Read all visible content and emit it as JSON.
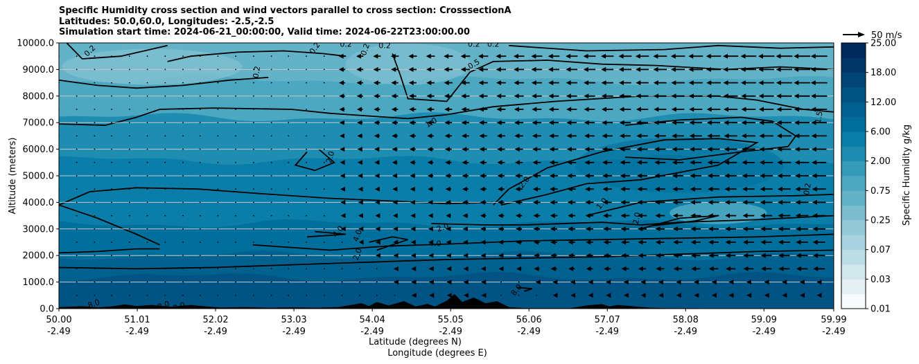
{
  "title_lines": [
    "Specific Humidity cross section and wind vectors parallel to cross section: CrosssectionA",
    "Latitudes: 50.0,60.0, Longitudes: -2.5,-2.5",
    "Simulation start time: 2024-06-21_00:00:00, Valid time: 2024-06-22T23:00:00.00"
  ],
  "chart_data": {
    "type": "heatmap",
    "ylabel": "Altitude (meters)",
    "xlabel_lines": [
      "Latitude (degrees N)",
      "Longitude (degrees E)"
    ],
    "ylim": [
      0,
      10000
    ],
    "xlim": [
      50.0,
      59.99
    ],
    "grid": "horizontal",
    "y_ticks": [
      "0.0",
      "1000.0",
      "2000.0",
      "3000.0",
      "4000.0",
      "5000.0",
      "6000.0",
      "7000.0",
      "8000.0",
      "9000.0",
      "10000.0"
    ],
    "x_ticks": [
      {
        "lat": "50.00",
        "lon": "-2.49"
      },
      {
        "lat": "51.01",
        "lon": "-2.49"
      },
      {
        "lat": "52.02",
        "lon": "-2.49"
      },
      {
        "lat": "53.03",
        "lon": "-2.49"
      },
      {
        "lat": "54.04",
        "lon": "-2.49"
      },
      {
        "lat": "55.05",
        "lon": "-2.49"
      },
      {
        "lat": "56.06",
        "lon": "-2.49"
      },
      {
        "lat": "57.07",
        "lon": "-2.49"
      },
      {
        "lat": "58.08",
        "lon": "-2.49"
      },
      {
        "lat": "59.09",
        "lon": "-2.49"
      },
      {
        "lat": "59.99",
        "lon": "-2.49"
      }
    ],
    "colorbar": {
      "label": "Specific Humidity g/kg",
      "ticks": [
        "0.01",
        "0.03",
        "0.07",
        "0.25",
        "0.75",
        "2.00",
        "6.00",
        "12.00",
        "18.00",
        "25.00"
      ],
      "levels": [
        "0.01",
        "0.02",
        "0.03",
        "0.05",
        "0.07",
        "0.1",
        "0.25",
        "0.5",
        "0.75",
        "1.0",
        "2.0",
        "4.0",
        "6.0",
        "9.0",
        "12.0",
        "15.0",
        "18.0",
        "22.0",
        "25.0"
      ],
      "colors": [
        "#f7fbfc",
        "#e4f0f3",
        "#d0e7ec",
        "#bcdde5",
        "#a8d3de",
        "#93c9d7",
        "#7cbecf",
        "#63b2c7",
        "#4ca7c0",
        "#369ab9",
        "#1f8cb1",
        "#0a7ea8",
        "#006f9c",
        "#00618f",
        "#005382",
        "#004575",
        "#003768",
        "#00295b"
      ]
    },
    "bands": [
      {
        "range": "0.25-0.5",
        "color": "#63b2c7",
        "y_top": 10000,
        "y_bottom": 8600
      },
      {
        "range": "0.5-1.0",
        "color": "#4ca7c0",
        "y_top": 8600,
        "y_bottom": 7200
      },
      {
        "range": "1.0-2.0",
        "color": "#1f8cb1",
        "y_top": 7200,
        "y_bottom": 5600
      },
      {
        "range": "2.0-4.0",
        "color": "#0a7ea8",
        "y_top": 5600,
        "y_bottom": 3200
      },
      {
        "range": "4.0-6.0",
        "color": "#006f9c",
        "y_top": 3200,
        "y_bottom": 2000
      },
      {
        "range": "6.0-9.0",
        "color": "#00618f",
        "y_top": 2000,
        "y_bottom": 1200
      },
      {
        "range": "9.0-12.0",
        "color": "#005382",
        "y_top": 1200,
        "y_bottom": 0
      }
    ],
    "contour_labels": [
      {
        "text": "0.2",
        "x": 50.4,
        "y": 9700,
        "rot": -45
      },
      {
        "text": "0.2",
        "x": 52.55,
        "y": 8900,
        "rot": -80
      },
      {
        "text": "0.2",
        "x": 53.3,
        "y": 9800,
        "rot": -55
      },
      {
        "text": "0.2",
        "x": 53.7,
        "y": 9950,
        "rot": 0
      },
      {
        "text": "0.2",
        "x": 53.95,
        "y": 9750,
        "rot": -70
      },
      {
        "text": "0.2",
        "x": 54.2,
        "y": 9900,
        "rot": 0
      },
      {
        "text": "0.2",
        "x": 55.35,
        "y": 9950,
        "rot": 0
      },
      {
        "text": "0.2",
        "x": 55.6,
        "y": 9950,
        "rot": 0
      },
      {
        "text": "0.5",
        "x": 55.35,
        "y": 9200,
        "rot": -30
      },
      {
        "text": "1.0",
        "x": 54.8,
        "y": 7000,
        "rot": -30
      },
      {
        "text": "2.0",
        "x": 53.5,
        "y": 5700,
        "rot": -75
      },
      {
        "text": "2.0",
        "x": 56.0,
        "y": 4750,
        "rot": -50
      },
      {
        "text": "1.0",
        "x": 57.0,
        "y": 3950,
        "rot": -50
      },
      {
        "text": "2.0",
        "x": 57.45,
        "y": 3400,
        "rot": -80
      },
      {
        "text": "0.2",
        "x": 59.65,
        "y": 4500,
        "rot": -80
      },
      {
        "text": "1.5",
        "x": 59.8,
        "y": 7200,
        "rot": -80
      },
      {
        "text": "4.0",
        "x": 53.6,
        "y": 2900,
        "rot": -50
      },
      {
        "text": "4.0",
        "x": 53.85,
        "y": 2750,
        "rot": -70
      },
      {
        "text": "2.0",
        "x": 53.85,
        "y": 2050,
        "rot": -70
      },
      {
        "text": "2.0",
        "x": 54.95,
        "y": 3050,
        "rot": -20
      },
      {
        "text": "4.0",
        "x": 54.85,
        "y": 2450,
        "rot": 0
      },
      {
        "text": "8.0",
        "x": 50.45,
        "y": 180,
        "rot": -20
      },
      {
        "text": "8.0",
        "x": 51.35,
        "y": 120,
        "rot": -20
      },
      {
        "text": "8.0",
        "x": 51.55,
        "y": 80,
        "rot": -20
      },
      {
        "text": "8.0",
        "x": 55.9,
        "y": 700,
        "rot": -50
      }
    ],
    "quiver": {
      "key_label": "50 m/s",
      "columns_lat": [
        50.0,
        50.23,
        50.46,
        50.68,
        50.91,
        51.14,
        51.37,
        51.6,
        51.82,
        52.05,
        52.28,
        52.51,
        52.74,
        52.96,
        53.19,
        53.42,
        53.65,
        53.88,
        54.1,
        54.33,
        54.56,
        54.79,
        55.02,
        55.24,
        55.47,
        55.7,
        55.93,
        56.16,
        56.38,
        56.61,
        56.84,
        57.07,
        57.3,
        57.52,
        57.75,
        57.98,
        58.21,
        58.44,
        58.66,
        58.89,
        59.12,
        59.35,
        59.58,
        59.8
      ],
      "rows_alt": [
        500,
        1000,
        1500,
        2000,
        2500,
        3000,
        3500,
        4000,
        4500,
        5000,
        5500,
        6000,
        6500,
        7000,
        7500,
        8000,
        8500,
        9000,
        9500
      ]
    },
    "terrain": [
      [
        50.0,
        60
      ],
      [
        50.3,
        90
      ],
      [
        50.5,
        50
      ],
      [
        50.7,
        90
      ],
      [
        50.85,
        160
      ],
      [
        51.0,
        100
      ],
      [
        51.2,
        140
      ],
      [
        51.45,
        70
      ],
      [
        51.7,
        140
      ],
      [
        51.9,
        80
      ],
      [
        52.1,
        40
      ],
      [
        52.4,
        60
      ],
      [
        52.7,
        30
      ],
      [
        53.0,
        50
      ],
      [
        53.3,
        30
      ],
      [
        53.6,
        60
      ],
      [
        53.9,
        200
      ],
      [
        54.0,
        100
      ],
      [
        54.1,
        250
      ],
      [
        54.25,
        120
      ],
      [
        54.45,
        280
      ],
      [
        54.6,
        80
      ],
      [
        54.75,
        180
      ],
      [
        54.85,
        80
      ],
      [
        55.0,
        300
      ],
      [
        55.1,
        550
      ],
      [
        55.2,
        250
      ],
      [
        55.35,
        420
      ],
      [
        55.5,
        200
      ],
      [
        55.65,
        280
      ],
      [
        55.8,
        60
      ],
      [
        56.0,
        20
      ],
      [
        56.6,
        20
      ],
      [
        56.8,
        120
      ],
      [
        57.0,
        170
      ],
      [
        57.1,
        80
      ],
      [
        57.2,
        140
      ],
      [
        57.4,
        90
      ],
      [
        57.6,
        40
      ],
      [
        57.8,
        20
      ],
      [
        58.5,
        10
      ],
      [
        59.99,
        10
      ]
    ]
  }
}
